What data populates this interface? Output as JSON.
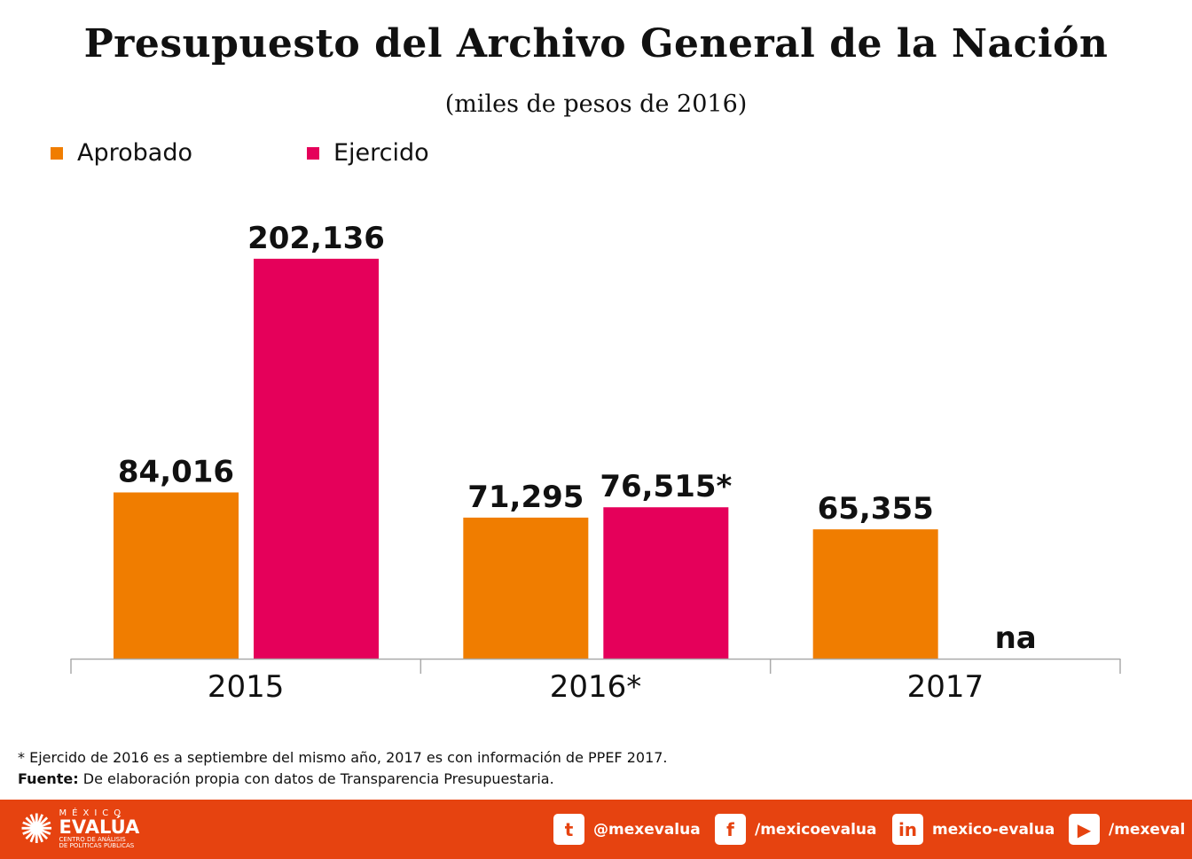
{
  "chart_data": {
    "type": "bar",
    "title": "Presupuesto del Archivo General de la Nación",
    "subtitle": "(miles de pesos de 2016)",
    "categories": [
      "2015",
      "2016*",
      "2017"
    ],
    "series": [
      {
        "name": "Aprobado",
        "color": "#F07D00",
        "values": [
          84016,
          71295,
          65355
        ],
        "labels": [
          "84,016",
          "71,295",
          "65,355"
        ]
      },
      {
        "name": "Ejercido",
        "color": "#E5005A",
        "values": [
          202136,
          76515,
          null
        ],
        "labels": [
          "202,136",
          "76,515*",
          "na"
        ]
      }
    ],
    "ylim": [
      0,
      220000
    ],
    "grid": false,
    "legend": "top-left"
  },
  "notes": {
    "footnote": "* Ejercido de 2016 es a septiembre del mismo año, 2017 es con información de PPEF 2017.",
    "source_label": "Fuente:",
    "source_text": " De elaboración propia con datos de Transparencia Presupuestaria."
  },
  "footer": {
    "logo_top": "MÉXICO",
    "logo_main": "EVALÚA",
    "logo_sub1": "CENTRO DE ANÁLISIS",
    "logo_sub2": "DE POLÍTICAS PÚBLICAS",
    "social": [
      {
        "icon": "twitter-icon",
        "glyph": "t",
        "label": "@mexevalua"
      },
      {
        "icon": "facebook-icon",
        "glyph": "f",
        "label": "/mexicoevalua"
      },
      {
        "icon": "linkedin-icon",
        "glyph": "in",
        "label": "mexico-evalua"
      },
      {
        "icon": "youtube-icon",
        "glyph": "▶",
        "label": "/mexeval"
      }
    ],
    "color": "#E64310"
  }
}
